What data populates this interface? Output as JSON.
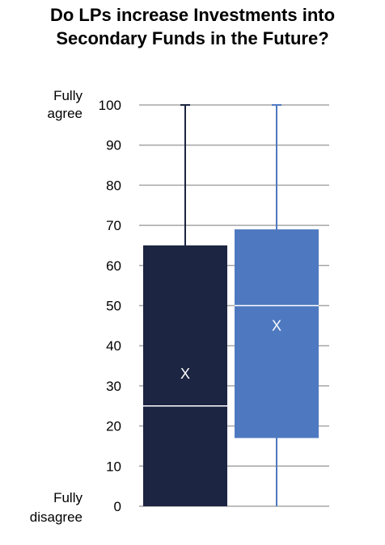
{
  "chart_data": {
    "type": "boxplot",
    "title": [
      "Do LPs increase Investments into",
      "Secondary Funds in the Future?"
    ],
    "ylim": [
      0,
      100
    ],
    "y_ticks": [
      0,
      10,
      20,
      30,
      40,
      50,
      60,
      70,
      80,
      90,
      100
    ],
    "y_top_label": [
      "Fully",
      "agree"
    ],
    "y_bottom_label": [
      "Fully",
      "disagree"
    ],
    "grid": true,
    "series": [
      {
        "color": "#1c2541",
        "min": 0,
        "q1": 0,
        "median": 25,
        "q3": 65,
        "max": 100,
        "mean": 33,
        "mean_marker": "X"
      },
      {
        "color": "#4e79c0",
        "min": 0,
        "q1": 17,
        "median": 50,
        "q3": 69,
        "max": 100,
        "mean": 45,
        "mean_marker": "X"
      }
    ]
  }
}
